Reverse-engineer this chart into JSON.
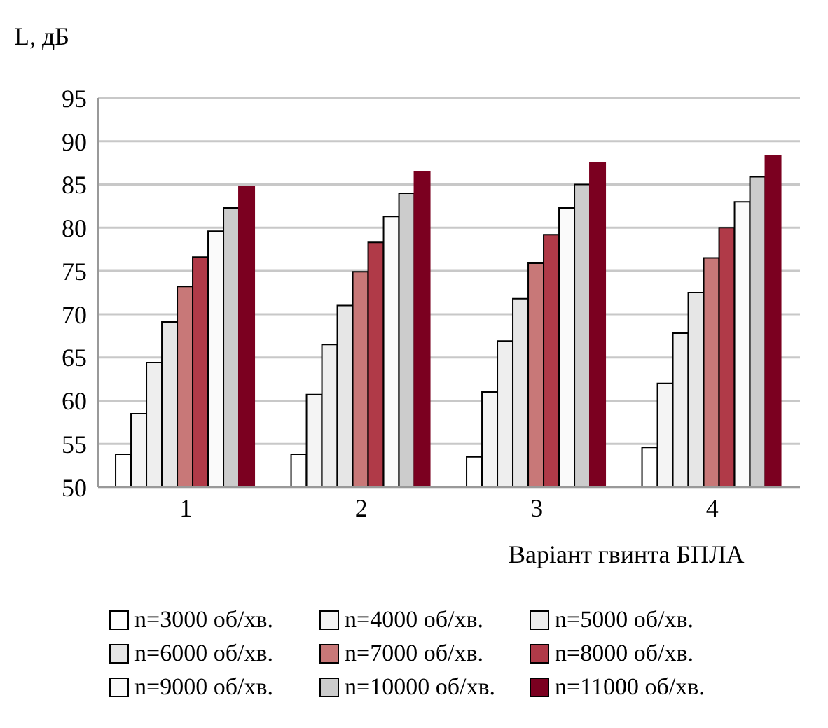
{
  "chart_data": {
    "type": "bar",
    "ylabel": "L, дБ",
    "xlabel": "Варіант гвинта БПЛА",
    "categories": [
      "1",
      "2",
      "3",
      "4"
    ],
    "series": [
      {
        "name": "n=3000 об/хв.",
        "color": "#ffffff",
        "values": [
          53.8,
          53.8,
          53.5,
          54.6
        ]
      },
      {
        "name": "n=4000 об/хв.",
        "color": "#f4f4f4",
        "values": [
          58.5,
          60.7,
          61.0,
          62.0
        ]
      },
      {
        "name": "n=5000 об/хв.",
        "color": "#eeeeee",
        "values": [
          64.4,
          66.5,
          66.9,
          67.8
        ]
      },
      {
        "name": "n=6000 об/хв.",
        "color": "#e6e6e6",
        "values": [
          69.1,
          71.0,
          71.8,
          72.5
        ]
      },
      {
        "name": "n=7000 об/хв.",
        "color": "#c87878",
        "values": [
          73.2,
          74.9,
          75.9,
          76.5
        ]
      },
      {
        "name": "n=8000 об/хв.",
        "color": "#b03a48",
        "values": [
          76.6,
          78.3,
          79.2,
          80.0
        ]
      },
      {
        "name": "n=9000 об/хв.",
        "color": "#fafafa",
        "values": [
          79.6,
          81.3,
          82.3,
          83.0
        ]
      },
      {
        "name": "n=10000 об/хв.",
        "color": "#cccccc",
        "values": [
          82.3,
          84.0,
          85.0,
          85.9
        ]
      },
      {
        "name": "n=11000 об/хв.",
        "color": "#7b0020",
        "values": [
          84.8,
          86.5,
          87.5,
          88.3
        ]
      }
    ],
    "ylim": [
      50,
      95
    ],
    "yticks": [
      50,
      55,
      60,
      65,
      70,
      75,
      80,
      85,
      90,
      95
    ],
    "grid": "y",
    "legend": "bottom"
  }
}
